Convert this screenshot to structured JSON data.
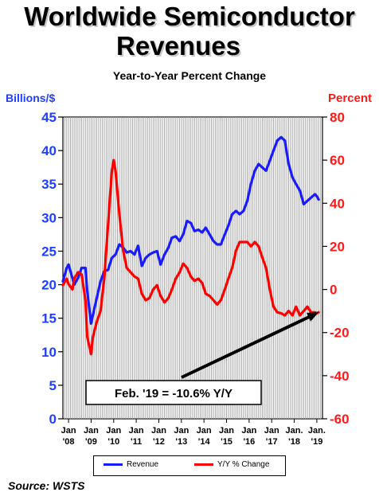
{
  "title_line1": "Worldwide Semiconductor",
  "title_line2": "Revenues",
  "subtitle": "Year-to-Year Percent Change",
  "source": "Source: WSTS",
  "colors": {
    "revenue": "#1a1aff",
    "yy_change": "#ff0000",
    "left_axis_text": "#1f3fff",
    "right_axis_text": "#ff1a1a",
    "grid": "#a8a8a8"
  },
  "chart_data": {
    "type": "line",
    "left_axis": {
      "label": "Billions/$",
      "range": [
        0,
        45
      ],
      "ticks": [
        0,
        5,
        10,
        15,
        20,
        25,
        30,
        35,
        40,
        45
      ]
    },
    "right_axis": {
      "label": "Percent",
      "range": [
        -60,
        80
      ],
      "ticks": [
        -60,
        -40,
        -20,
        0,
        20,
        40,
        60,
        80
      ]
    },
    "x_range": [
      2007.75,
      2019.25
    ],
    "x_tick_labels": [
      {
        "x": 2008,
        "top": "Jan",
        "bottom": "'08"
      },
      {
        "x": 2009,
        "top": "Jan",
        "bottom": "'09"
      },
      {
        "x": 2010,
        "top": "Jan",
        "bottom": "'10"
      },
      {
        "x": 2011,
        "top": "Jan",
        "bottom": "'11"
      },
      {
        "x": 2012,
        "top": "Jan",
        "bottom": "'12"
      },
      {
        "x": 2013,
        "top": "Jan",
        "bottom": "'13"
      },
      {
        "x": 2014,
        "top": "Jan",
        "bottom": "'14"
      },
      {
        "x": 2015,
        "top": "Jan",
        "bottom": "'15"
      },
      {
        "x": 2016,
        "top": "Jan",
        "bottom": "'16"
      },
      {
        "x": 2017,
        "top": "Jan",
        "bottom": "'17"
      },
      {
        "x": 2018,
        "top": "Jan.",
        "bottom": "'18"
      },
      {
        "x": 2019,
        "top": "Jan.",
        "bottom": "'19"
      }
    ],
    "grid": "vertical, monthly",
    "legend_position": "bottom",
    "series": [
      {
        "name": "Revenue",
        "axis": "left",
        "x": [
          2007.75,
          2007.92,
          2008.0,
          2008.17,
          2008.25,
          2008.42,
          2008.58,
          2008.75,
          2008.83,
          2009.0,
          2009.08,
          2009.25,
          2009.42,
          2009.58,
          2009.75,
          2009.92,
          2010.08,
          2010.25,
          2010.42,
          2010.58,
          2010.75,
          2010.92,
          2011.08,
          2011.25,
          2011.42,
          2011.58,
          2011.75,
          2011.92,
          2012.08,
          2012.25,
          2012.42,
          2012.58,
          2012.75,
          2012.92,
          2013.08,
          2013.25,
          2013.42,
          2013.58,
          2013.75,
          2013.92,
          2014.08,
          2014.25,
          2014.42,
          2014.58,
          2014.75,
          2014.92,
          2015.08,
          2015.25,
          2015.42,
          2015.58,
          2015.75,
          2015.92,
          2016.08,
          2016.25,
          2016.42,
          2016.58,
          2016.75,
          2016.92,
          2017.08,
          2017.25,
          2017.42,
          2017.58,
          2017.75,
          2017.92,
          2018.08,
          2018.25,
          2018.42,
          2018.58,
          2018.75,
          2018.92,
          2019.0,
          2019.08
        ],
        "y": [
          20.5,
          22.5,
          23.0,
          21.0,
          20.0,
          21.0,
          22.5,
          22.5,
          19.0,
          14.2,
          15.5,
          18.0,
          20.5,
          22.0,
          22.2,
          24.0,
          24.5,
          26.0,
          25.5,
          24.8,
          25.0,
          24.5,
          25.8,
          22.8,
          24.0,
          24.5,
          24.8,
          25.0,
          23.0,
          24.5,
          25.5,
          27.0,
          27.2,
          26.5,
          27.5,
          29.5,
          29.2,
          28.0,
          28.2,
          27.8,
          28.5,
          27.5,
          26.5,
          26.0,
          26.0,
          27.5,
          28.8,
          30.5,
          31.0,
          30.5,
          31.0,
          32.5,
          35.0,
          37.0,
          38.0,
          37.5,
          37.0,
          38.5,
          40.0,
          41.5,
          42.0,
          41.5,
          38.0,
          36.0,
          35.0,
          34.0,
          32.0,
          32.5,
          33.0,
          33.5,
          33.2,
          32.7
        ]
      },
      {
        "name": "Y/Y % Change",
        "axis": "right",
        "x": [
          2007.75,
          2007.92,
          2008.0,
          2008.17,
          2008.25,
          2008.42,
          2008.58,
          2008.75,
          2008.83,
          2009.0,
          2009.08,
          2009.25,
          2009.42,
          2009.58,
          2009.75,
          2009.92,
          2010.0,
          2010.08,
          2010.25,
          2010.42,
          2010.58,
          2010.75,
          2010.92,
          2011.08,
          2011.25,
          2011.42,
          2011.58,
          2011.75,
          2011.92,
          2012.08,
          2012.25,
          2012.42,
          2012.58,
          2012.75,
          2012.92,
          2013.08,
          2013.25,
          2013.42,
          2013.58,
          2013.75,
          2013.92,
          2014.08,
          2014.25,
          2014.42,
          2014.58,
          2014.75,
          2014.92,
          2015.08,
          2015.25,
          2015.42,
          2015.58,
          2015.75,
          2015.92,
          2016.08,
          2016.25,
          2016.42,
          2016.58,
          2016.75,
          2016.92,
          2017.08,
          2017.25,
          2017.42,
          2017.58,
          2017.75,
          2017.92,
          2018.08,
          2018.25,
          2018.42,
          2018.58,
          2018.75,
          2018.92,
          2019.0,
          2019.08
        ],
        "y": [
          2.0,
          5.0,
          2.5,
          0.0,
          5.0,
          8.0,
          7.0,
          -5.0,
          -22.0,
          -30.0,
          -22.0,
          -15.0,
          -10.0,
          5.0,
          30.0,
          55.0,
          60.0,
          55.0,
          35.0,
          18.0,
          10.0,
          8.0,
          6.0,
          5.0,
          -2.0,
          -5.0,
          -4.0,
          0.0,
          2.0,
          -3.0,
          -6.0,
          -4.0,
          0.0,
          5.0,
          8.0,
          12.0,
          10.0,
          6.0,
          4.0,
          5.0,
          3.0,
          -2.0,
          -3.0,
          -5.0,
          -7.0,
          -5.0,
          0.0,
          5.0,
          10.0,
          18.0,
          22.0,
          22.0,
          22.0,
          20.0,
          22.0,
          20.0,
          15.0,
          10.0,
          0.0,
          -8.0,
          -10.6,
          -11.0,
          -12.0,
          -10.0,
          -12.0,
          -8.0,
          -12.0,
          -10.0,
          -8.0,
          -10.6,
          -10.6,
          -11.0,
          -10.6
        ]
      }
    ],
    "annotation": {
      "text": "Feb. '19 = -10.6% Y/Y",
      "points_to_x": 2019.08,
      "points_to_y": -10.6,
      "axis": "right"
    }
  }
}
